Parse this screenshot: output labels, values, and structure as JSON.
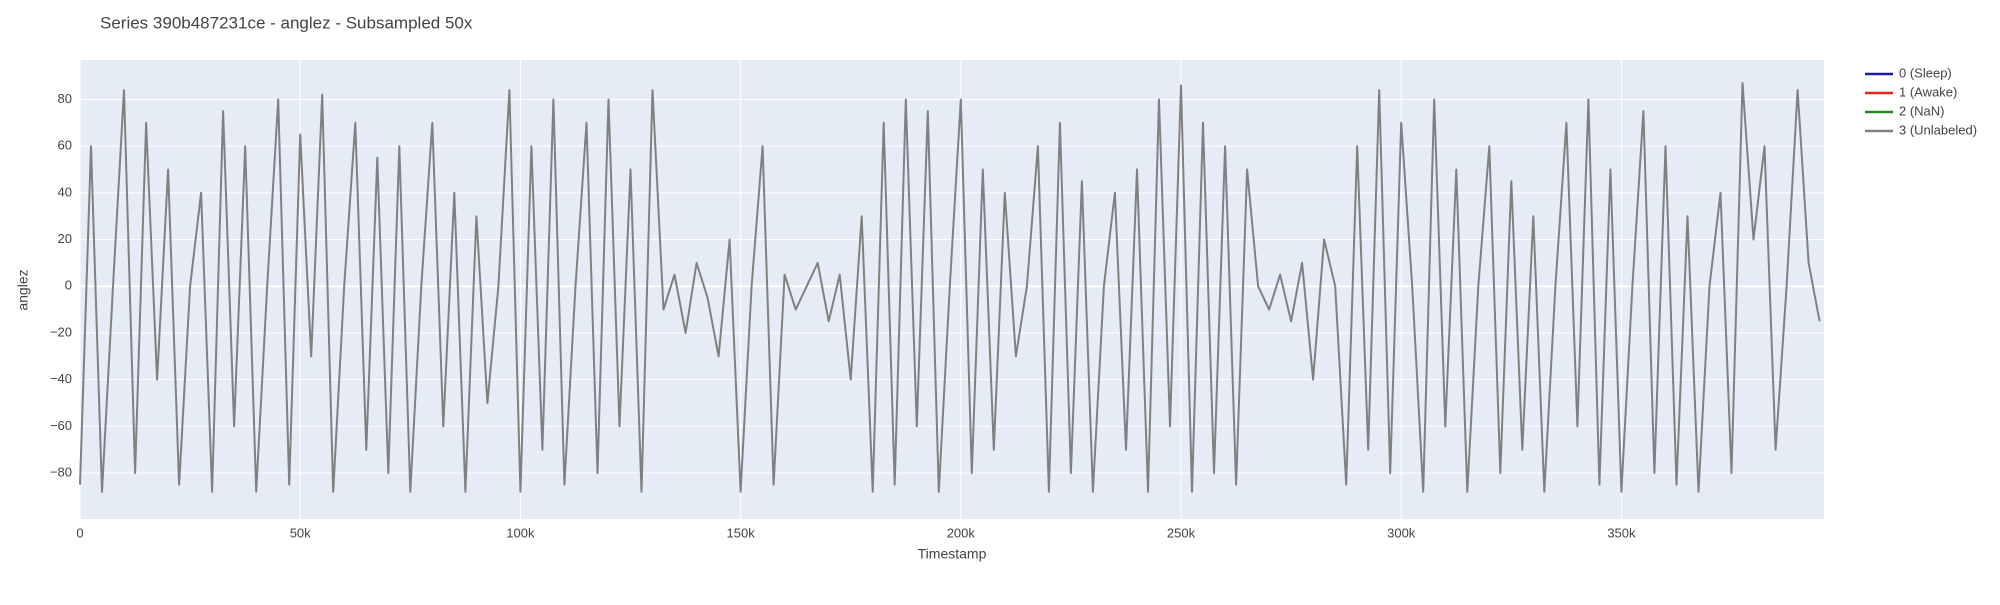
{
  "chart_data": {
    "type": "line",
    "title": "Series 390b487231ce - anglez - Subsampled 50x",
    "x_label": "Timestamp",
    "y_label": "anglez",
    "xlim": [
      0,
      396000
    ],
    "ylim": [
      -99.7,
      96.9
    ],
    "xticks": [
      {
        "value": 0,
        "label": "0"
      },
      {
        "value": 50000,
        "label": "50k"
      },
      {
        "value": 100000,
        "label": "100k"
      },
      {
        "value": 150000,
        "label": "150k"
      },
      {
        "value": 200000,
        "label": "200k"
      },
      {
        "value": 250000,
        "label": "250k"
      },
      {
        "value": 300000,
        "label": "300k"
      },
      {
        "value": 350000,
        "label": "350k"
      }
    ],
    "yticks": [
      {
        "value": -80,
        "label": "−80"
      },
      {
        "value": -60,
        "label": "−60"
      },
      {
        "value": -40,
        "label": "−40"
      },
      {
        "value": -20,
        "label": "−20"
      },
      0,
      20,
      40,
      60,
      80
    ],
    "grid": true,
    "legend_position": "right",
    "series": [
      {
        "name": "0 (Sleep)",
        "color": "#1a1aa6",
        "x": [],
        "values": []
      },
      {
        "name": "1 (Awake)",
        "color": "#e8251f",
        "x": [],
        "values": []
      },
      {
        "name": "2 (NaN)",
        "color": "#1e8c1e",
        "x": [],
        "values": []
      },
      {
        "name": "3 (Unlabeled)",
        "color": "#808080",
        "x": [
          0,
          2500,
          5000,
          7500,
          10000,
          12500,
          15000,
          17500,
          20000,
          22500,
          25000,
          27500,
          30000,
          32500,
          35000,
          37500,
          40000,
          42500,
          45000,
          47500,
          50000,
          52500,
          55000,
          57500,
          60000,
          62500,
          65000,
          67500,
          70000,
          72500,
          75000,
          77500,
          80000,
          82500,
          85000,
          87500,
          90000,
          92500,
          95000,
          97500,
          100000,
          102500,
          105000,
          107500,
          110000,
          112500,
          115000,
          117500,
          120000,
          122500,
          125000,
          127500,
          130000,
          132500,
          135000,
          137500,
          140000,
          142500,
          145000,
          147500,
          150000,
          152500,
          155000,
          157500,
          160000,
          162500,
          165000,
          167500,
          170000,
          172500,
          175000,
          177500,
          180000,
          182500,
          185000,
          187500,
          190000,
          192500,
          195000,
          197500,
          200000,
          202500,
          205000,
          207500,
          210000,
          212500,
          215000,
          217500,
          220000,
          222500,
          225000,
          227500,
          230000,
          232500,
          235000,
          237500,
          240000,
          242500,
          245000,
          247500,
          250000,
          252500,
          255000,
          257500,
          260000,
          262500,
          265000,
          267500,
          270000,
          272500,
          275000,
          277500,
          280000,
          282500,
          285000,
          287500,
          290000,
          292500,
          295000,
          297500,
          300000,
          302500,
          305000,
          307500,
          310000,
          312500,
          315000,
          317500,
          320000,
          322500,
          325000,
          327500,
          330000,
          332500,
          335000,
          337500,
          340000,
          342500,
          345000,
          347500,
          350000,
          352500,
          355000,
          357500,
          360000,
          362500,
          365000,
          367500,
          370000,
          372500,
          375000,
          377500,
          380000,
          382500,
          385000,
          387500,
          390000,
          392500,
          395000
        ],
        "values": [
          -85,
          60,
          -88,
          0,
          84,
          -80,
          70,
          -40,
          50,
          -85,
          0,
          40,
          -88,
          75,
          -60,
          60,
          -88,
          0,
          80,
          -85,
          65,
          -30,
          82,
          -88,
          0,
          70,
          -70,
          55,
          -80,
          60,
          -88,
          0,
          70,
          -60,
          40,
          -88,
          30,
          -50,
          0,
          84,
          -88,
          60,
          -70,
          80,
          -85,
          0,
          70,
          -80,
          80,
          -60,
          50,
          -88,
          84,
          -10,
          5,
          -20,
          10,
          -5,
          -30,
          20,
          -88,
          0,
          60,
          -85,
          5,
          -10,
          0,
          10,
          -15,
          5,
          -40,
          30,
          -88,
          70,
          -85,
          80,
          -60,
          75,
          -88,
          0,
          80,
          -80,
          50,
          -70,
          40,
          -30,
          0,
          60,
          -88,
          70,
          -80,
          45,
          -88,
          0,
          40,
          -70,
          50,
          -88,
          80,
          -60,
          86,
          -88,
          70,
          -80,
          60,
          -85,
          50,
          0,
          -10,
          5,
          -15,
          10,
          -40,
          20,
          0,
          -85,
          60,
          -70,
          84,
          -80,
          70,
          0,
          -88,
          80,
          -60,
          50,
          -88,
          0,
          60,
          -80,
          45,
          -70,
          30,
          -88,
          0,
          70,
          -60,
          80,
          -85,
          50,
          -88,
          0,
          75,
          -80,
          60,
          -85,
          30,
          -88,
          0,
          40,
          -80,
          87,
          20,
          60,
          -70,
          0,
          84,
          10,
          -15
        ]
      }
    ]
  }
}
